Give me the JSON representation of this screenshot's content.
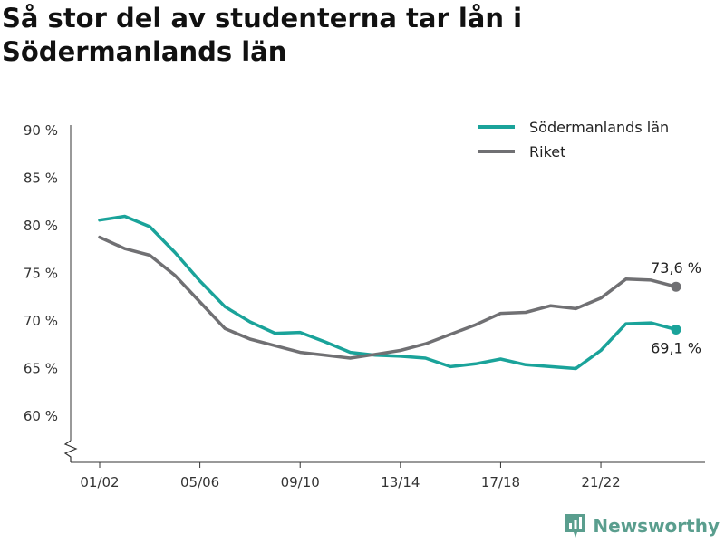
{
  "title": "Så stor del av studenterna tar lån i Södermanlands län",
  "brand": {
    "name": "Newsworthy",
    "icon": "newsworthy-logo-icon",
    "color": "#5a9e8e"
  },
  "chart_data": {
    "type": "line",
    "title": "Så stor del av studenterna tar lån i Södermanlands län",
    "xlabel": "",
    "ylabel": "",
    "ylim": [
      55,
      90
    ],
    "yticks": [
      60,
      65,
      70,
      75,
      80,
      85,
      90
    ],
    "ytick_labels": [
      "60 %",
      "65 %",
      "70 %",
      "75 %",
      "80 %",
      "85 %",
      "90 %"
    ],
    "axis_break": true,
    "grid": false,
    "legend": "top-right",
    "x": [
      "01/02",
      "02/03",
      "03/04",
      "04/05",
      "05/06",
      "06/07",
      "07/08",
      "08/09",
      "09/10",
      "10/11",
      "11/12",
      "12/13",
      "13/14",
      "14/15",
      "15/16",
      "16/17",
      "17/18",
      "18/19",
      "19/20",
      "20/21",
      "21/22",
      "22/23",
      "23/24",
      "24/25"
    ],
    "xtick_labels": [
      "01/02",
      "05/06",
      "09/10",
      "13/14",
      "17/18",
      "21/22"
    ],
    "series": [
      {
        "name": "Södermanlands län",
        "color": "#1aa39a",
        "values": [
          80.6,
          81.0,
          79.9,
          77.2,
          74.2,
          71.5,
          69.9,
          68.7,
          68.8,
          67.8,
          66.7,
          66.4,
          66.3,
          66.1,
          65.2,
          65.5,
          66.0,
          65.4,
          65.2,
          65.0,
          66.9,
          69.7,
          69.8,
          69.1
        ],
        "end_label": "69,1 %"
      },
      {
        "name": "Riket",
        "color": "#707073",
        "values": [
          78.8,
          77.6,
          76.9,
          74.8,
          72.0,
          69.2,
          68.1,
          67.4,
          66.7,
          66.4,
          66.1,
          66.5,
          66.9,
          67.6,
          68.6,
          69.6,
          70.8,
          70.9,
          71.6,
          71.3,
          72.4,
          74.4,
          74.3,
          73.6
        ],
        "end_label": "73,6 %"
      }
    ]
  }
}
